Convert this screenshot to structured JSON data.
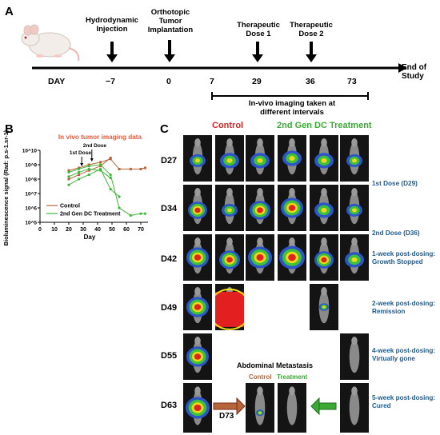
{
  "panel_a": {
    "letter": "A",
    "events": [
      {
        "label": "Hydrodynamic\nInjection",
        "day": "−7"
      },
      {
        "label": "Orthotopic\nTumor\nImplantation",
        "day": "0"
      },
      {
        "label": "",
        "day": "7"
      },
      {
        "label": "Therapeutic\nDose 1",
        "day": "29"
      },
      {
        "label": "Therapeutic\nDose 2",
        "day": "36"
      },
      {
        "label": "",
        "day": "73"
      }
    ],
    "day_label": "DAY",
    "end_label": "End of Study",
    "imaging_note": "In-vivo imaging taken at\ndifferent intervals"
  },
  "panel_b": {
    "letter": "B",
    "chart_data": {
      "type": "line",
      "title": "In vivo tumor imaging data",
      "xlabel": "Day",
      "ylabel": "Bioluminescence signal (Rad: p.s-1.sr-1)",
      "xlim": [
        0,
        75
      ],
      "ylim_log10": [
        5,
        10
      ],
      "x_ticks": [
        "0",
        "10",
        "20",
        "30",
        "40",
        "50",
        "60",
        "70"
      ],
      "y_ticks": [
        "10^5",
        "10^6",
        "10^7",
        "10^8",
        "10^9",
        "10^10"
      ],
      "annotations": [
        "1st Dose",
        "2nd Dose"
      ],
      "series": [
        {
          "name": "Control",
          "color": "#b5653a",
          "lines": [
            [
              [
                20,
                400000000.0
              ],
              [
                27,
                600000000.0
              ],
              [
                34,
                1000000000.0
              ],
              [
                42,
                1500000000.0
              ],
              [
                49,
                2500000000.0
              ],
              [
                55,
                500000000.0
              ],
              [
                63,
                500000000.0
              ],
              [
                70,
                500000000.0
              ],
              [
                73,
                600000000.0
              ]
            ],
            [
              [
                20,
                100000000.0
              ],
              [
                27,
                200000000.0
              ],
              [
                34,
                400000000.0
              ],
              [
                42,
                800000000.0
              ],
              [
                49,
                3000000000.0
              ]
            ]
          ]
        },
        {
          "name": "2nd Gen DC Treatment",
          "color": "#3db83a",
          "lines": [
            [
              [
                20,
                300000000.0
              ],
              [
                27,
                500000000.0
              ],
              [
                34,
                800000000.0
              ],
              [
                42,
                1000000000.0
              ],
              [
                49,
                200000000.0
              ],
              [
                55,
                1000000.0
              ],
              [
                63,
                300000.0
              ],
              [
                70,
                400000.0
              ],
              [
                73,
                400000.0
              ]
            ],
            [
              [
                20,
                40000000.0
              ],
              [
                27,
                100000000.0
              ],
              [
                34,
                200000000.0
              ],
              [
                42,
                500000000.0
              ],
              [
                49,
                20000000.0
              ],
              [
                55,
                6000000.0
              ]
            ],
            [
              [
                20,
                150000000.0
              ],
              [
                27,
                300000000.0
              ],
              [
                34,
                500000000.0
              ],
              [
                42,
                400000000.0
              ],
              [
                49,
                120000000.0
              ]
            ]
          ]
        }
      ]
    }
  },
  "panel_c": {
    "letter": "C",
    "control_heading": "Control",
    "treatment_heading": "2nd Gen DC Treatment",
    "rows": [
      "D27",
      "D34",
      "D42",
      "D49",
      "D55",
      "D63"
    ],
    "notes": [
      "1st Dose (D29)",
      "2nd Dose (D36)",
      "1-week post-dosing:\nGrowth Stopped",
      "2-week post-dosing:\nRemission",
      "4-week post-dosing:\nVirtually gone",
      "5-week post-dosing:\nCured"
    ],
    "metastasis_title": "Abdominal Metastasis",
    "metastasis_control": "Control",
    "metastasis_treatment": "Treatment",
    "d73_label": "D73",
    "colors": {
      "control": "#d32626",
      "treatment": "#3aaa35",
      "note": "#1f5b8f"
    }
  }
}
